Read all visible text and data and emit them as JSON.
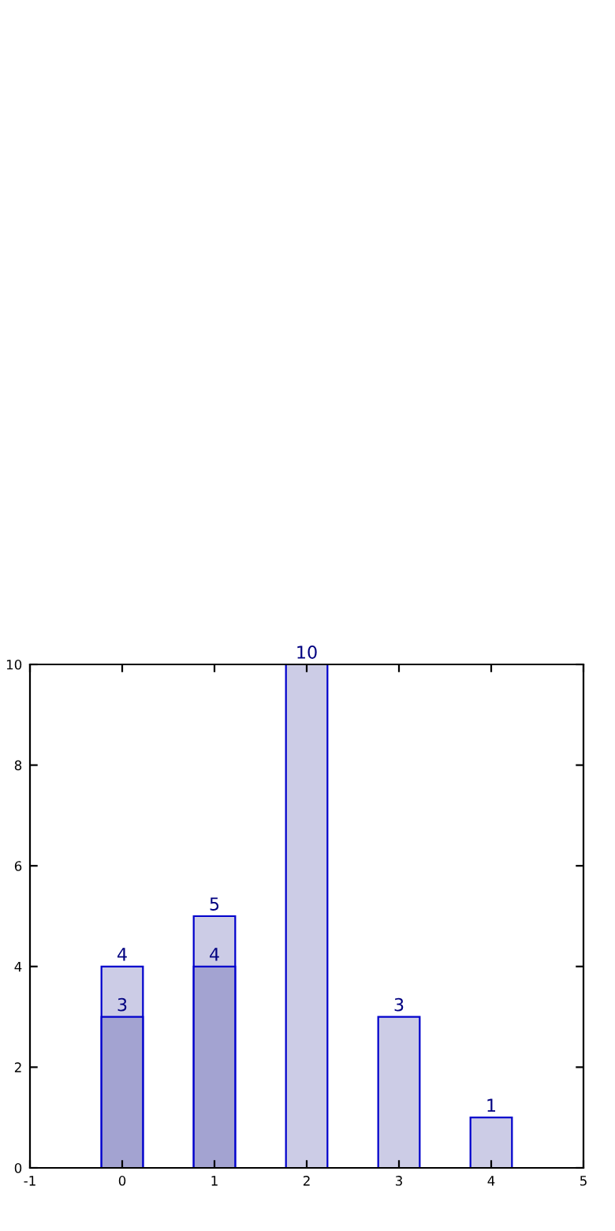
{
  "chart_data": {
    "type": "bar",
    "x": [
      0,
      1,
      2,
      3,
      4
    ],
    "series": [
      {
        "color": "#ccccE6",
        "values": [
          4,
          5,
          10,
          3,
          1
        ]
      },
      {
        "color": "#a3a3d1",
        "x": [
          0,
          1
        ],
        "values": [
          3,
          4
        ]
      }
    ],
    "xlim": [
      -1,
      5
    ],
    "xticks": [
      -1,
      0,
      1,
      2,
      3,
      4,
      5
    ],
    "ylim": [
      0,
      10
    ],
    "yticks": [
      0,
      2,
      4,
      6,
      8,
      10
    ],
    "data_labels": true,
    "grid": false,
    "legend": false
  }
}
